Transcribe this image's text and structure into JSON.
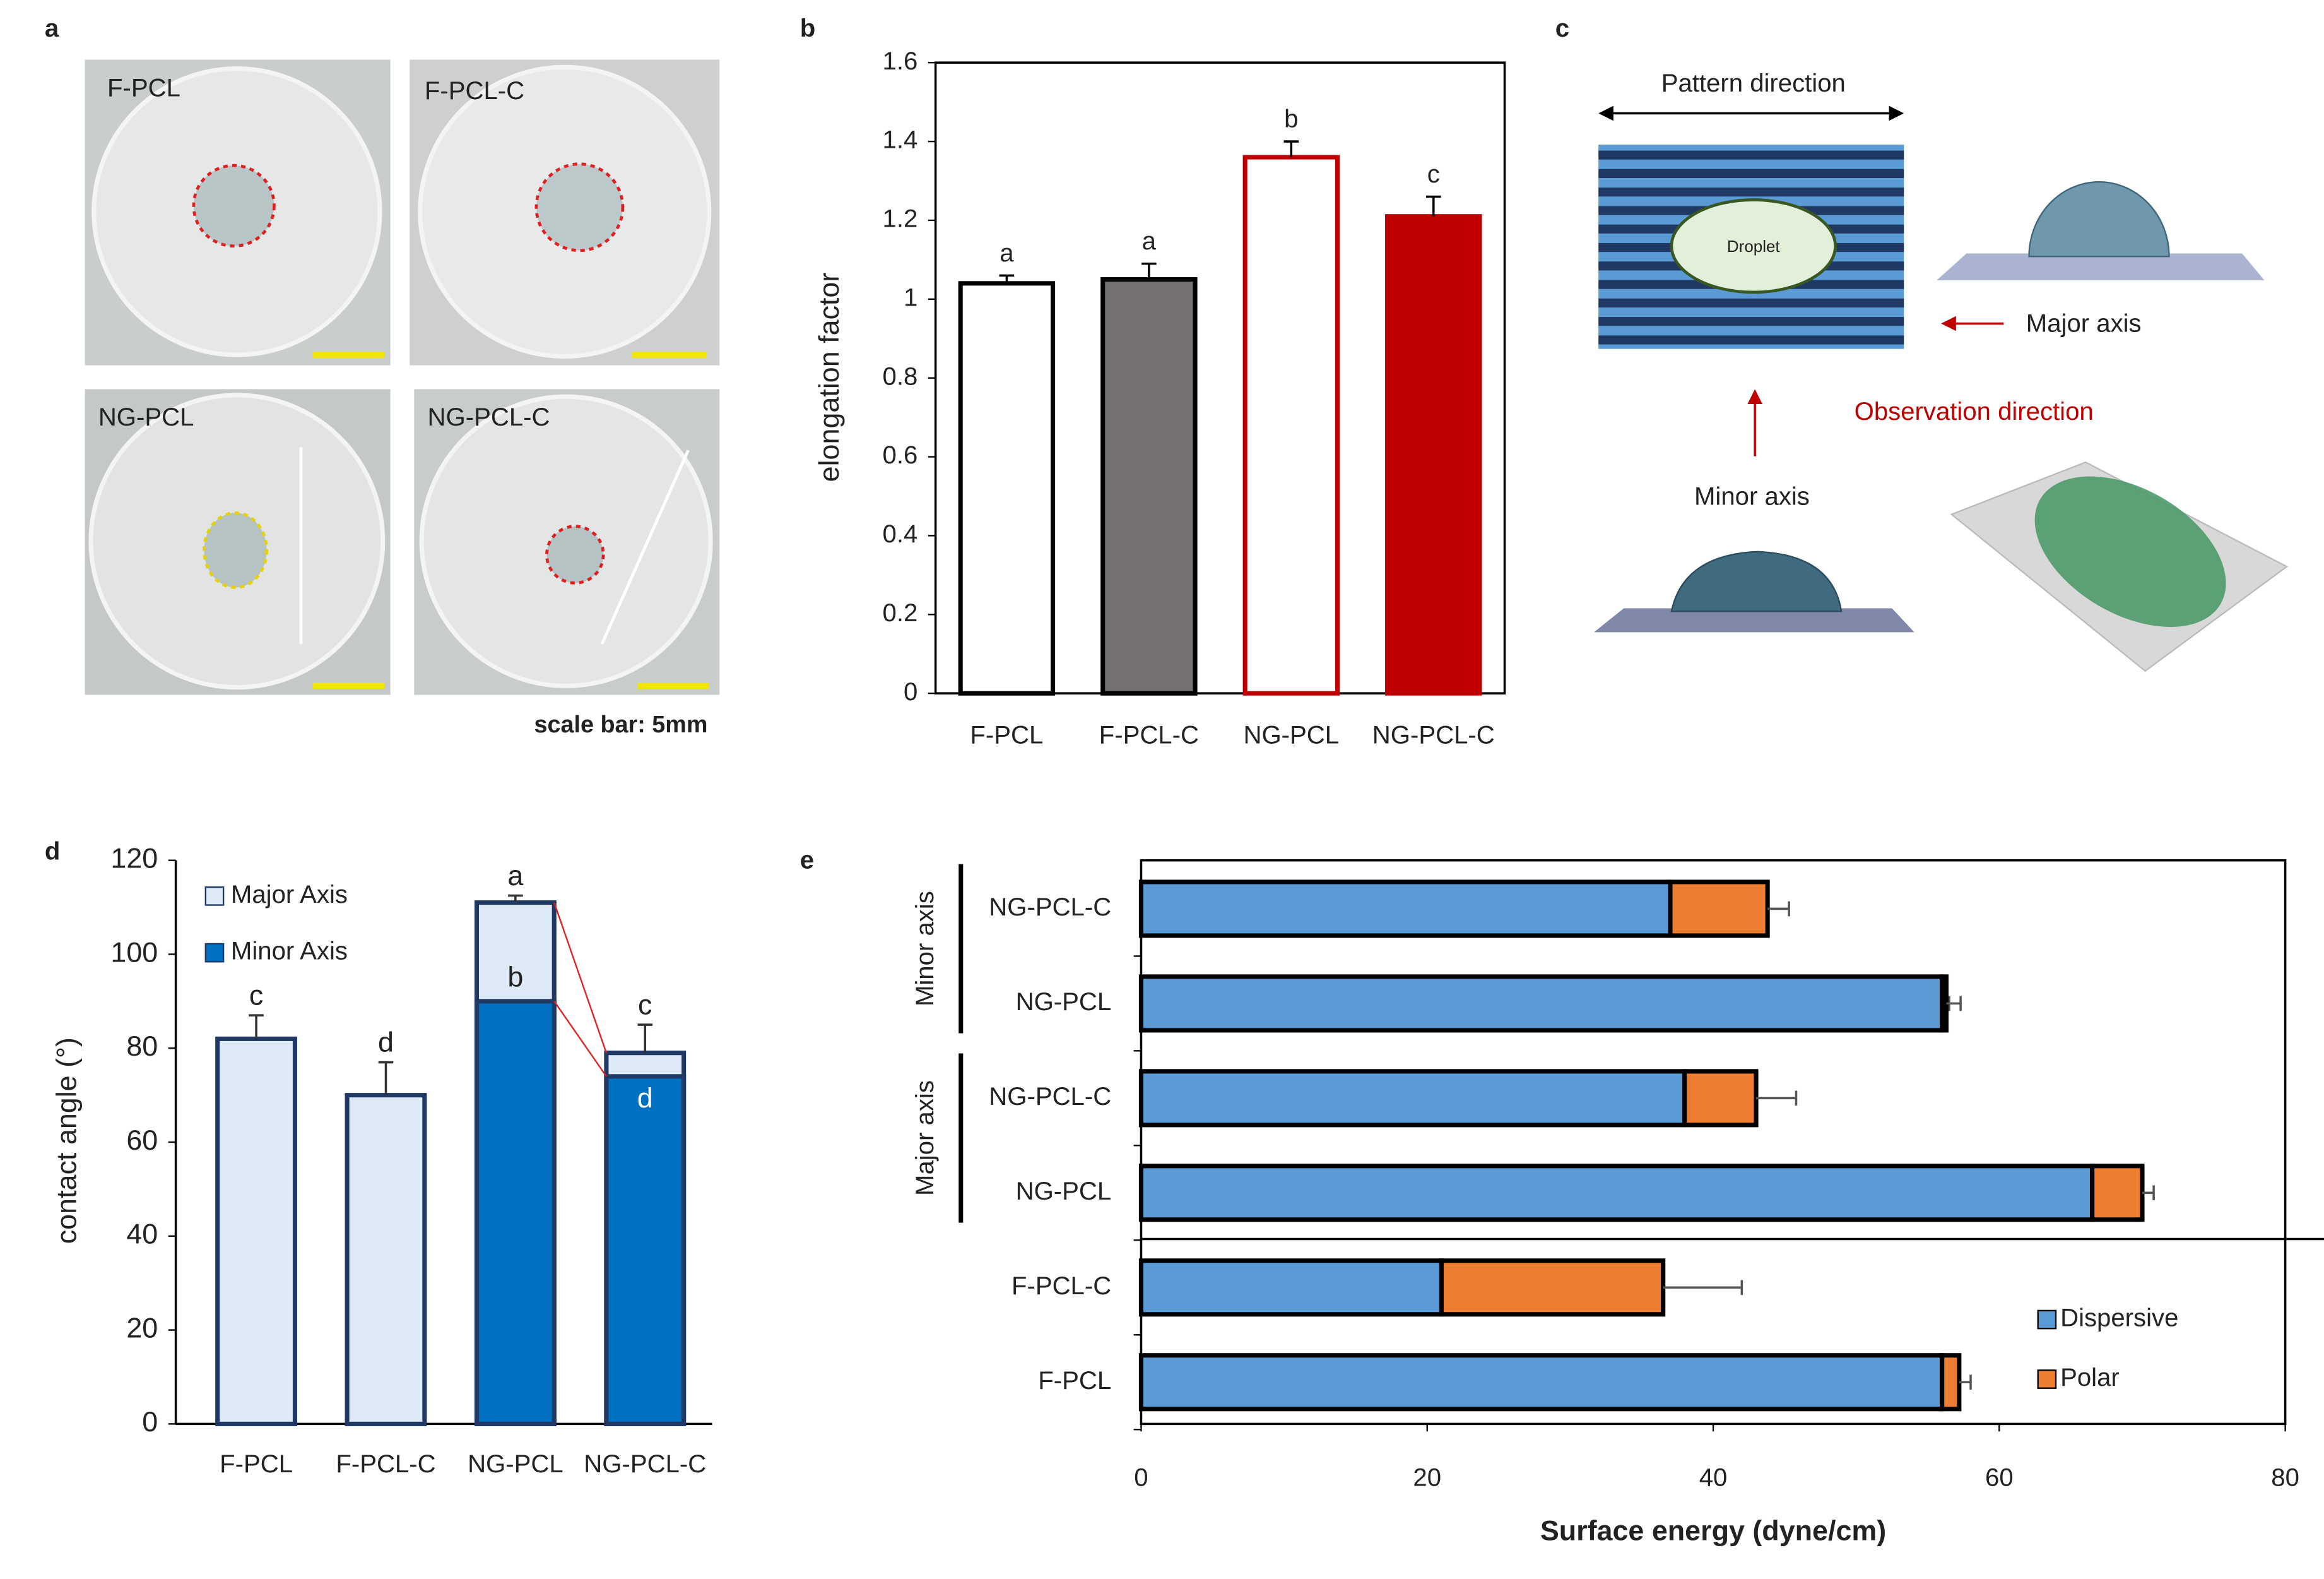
{
  "panel_labels": [
    "a",
    "b",
    "c",
    "d",
    "e"
  ],
  "photos": {
    "labels": [
      "F-PCL",
      "F-PCL-C",
      "NG-PCL",
      "NG-PCL-C"
    ],
    "scale_note": "scale bar: 5mm"
  },
  "diagram": {
    "pattern": "Pattern direction",
    "droplet": "Droplet",
    "major": "Major axis",
    "observation": "Observation direction",
    "minor": "Minor axis"
  },
  "chart_data": [
    {
      "type": "bar",
      "ylabel": "elongation factor",
      "categories": [
        "F-PCL",
        "F-PCL-C",
        "NG-PCL",
        "NG-PCL-C"
      ],
      "values": [
        1.04,
        1.05,
        1.36,
        1.21
      ],
      "errors": [
        0.02,
        0.04,
        0.04,
        0.05
      ],
      "labels": [
        "a",
        "a",
        "b",
        "c"
      ],
      "fills": [
        "#ffffff",
        "#767171",
        "#ffffff",
        "#c00000"
      ],
      "strokes": [
        "#000000",
        "#000000",
        "#c00000",
        "#c00000"
      ],
      "ylim": [
        0,
        1.6
      ],
      "yticks": [
        0,
        0.2,
        0.4,
        0.6,
        0.8,
        1,
        1.2,
        1.4,
        1.6
      ]
    },
    {
      "type": "overlay-bar",
      "ylabel": "contact angle (°)",
      "categories": [
        "F-PCL",
        "F-PCL-C",
        "NG-PCL",
        "NG-PCL-C"
      ],
      "series": [
        {
          "name": "Major Axis",
          "color": "#dde9f6",
          "values": [
            82,
            70,
            111,
            79
          ],
          "errors": [
            5,
            7,
            1.5,
            6
          ],
          "labels": [
            "c",
            "d",
            "a",
            "c"
          ]
        },
        {
          "name": "Minor Axis",
          "color": "#0070c0",
          "values": [
            null,
            null,
            90,
            74
          ],
          "labels": [
            null,
            null,
            "b",
            "d"
          ]
        }
      ],
      "ylim": [
        0,
        120
      ],
      "yticks": [
        0,
        20,
        40,
        60,
        80,
        100,
        120
      ]
    },
    {
      "type": "hbar-stacked",
      "xlabel": "Surface energy (dyne/cm)",
      "categories": [
        "F-PCL",
        "F-PCL-C",
        "NG-PCL",
        "NG-PCL-C",
        "NG-PCL",
        "NG-PCL-C"
      ],
      "groups": [
        {
          "name": "Major axis"
        },
        {
          "name": "Minor axis"
        }
      ],
      "series": [
        {
          "name": "Dispersive",
          "color": "#5b9bd5",
          "values": [
            56,
            21,
            66.5,
            38,
            56,
            37
          ],
          "errors": [
            0.5,
            3,
            0.6,
            3.5,
            0.5,
            1.5
          ]
        },
        {
          "name": "Polar",
          "color": "#ed7d31",
          "values": [
            1.2,
            15.5,
            3.5,
            5,
            0.3,
            6.8
          ],
          "errors": [
            0.8,
            5.5,
            0.8,
            2.8,
            1,
            1.5
          ]
        }
      ],
      "xlim": [
        0,
        80
      ],
      "xticks": [
        0,
        20,
        40,
        60,
        80
      ]
    }
  ]
}
